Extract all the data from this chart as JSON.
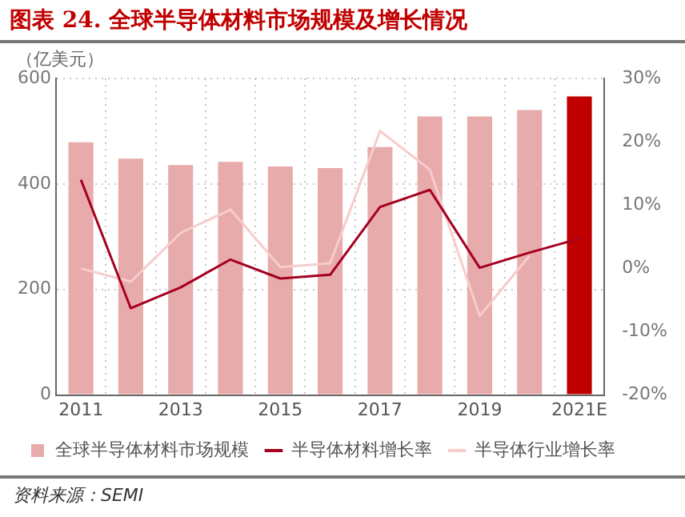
{
  "chart_data": {
    "type": "bar",
    "title": "图表 24. 全球半导体材料市场规模及增长情况",
    "ylabel": "（亿美元）",
    "categories": [
      "2011",
      null,
      "2013",
      null,
      "2015",
      null,
      "2017",
      null,
      "2019",
      null,
      "2021E"
    ],
    "series": [
      {
        "name": "全球半导体材料市场规模",
        "colors": [
          "#e8abab",
          "#e8abab",
          "#e8abab",
          "#e8abab",
          "#e8abab",
          "#e8abab",
          "#e8abab",
          "#e8abab",
          "#e8abab",
          "#e8abab",
          "#c00000"
        ],
        "values": [
          479,
          448,
          436,
          442,
          433,
          430,
          470,
          528,
          528,
          540,
          566
        ]
      },
      {
        "name": "半导体材料增长率",
        "type": "line",
        "axis": "y2",
        "color": "#a50021",
        "values": [
          14.0,
          -6.3,
          -3.0,
          1.4,
          -1.6,
          -1.0,
          9.7,
          12.4,
          0.1,
          2.5,
          4.7
        ]
      },
      {
        "name": "半导体行业增长率",
        "type": "line",
        "axis": "y2",
        "color": "#f7cccc",
        "values": [
          0,
          -2.1,
          5.6,
          9.3,
          0.2,
          0.8,
          21.7,
          15.6,
          -7.5,
          2.0,
          null
        ]
      }
    ],
    "ylim": [
      0,
      600
    ],
    "yticks": [
      0,
      200,
      400,
      600
    ],
    "y2lim": [
      -20,
      30
    ],
    "y2ticks": [
      {
        "value": -20,
        "label": "-20%"
      },
      {
        "value": -10,
        "label": "-10%"
      },
      {
        "value": 0,
        "label": "0%"
      },
      {
        "value": 10,
        "label": "10%"
      },
      {
        "value": 20,
        "label": "20%"
      },
      {
        "value": 30,
        "label": "30%"
      }
    ],
    "grid": true,
    "legend": "bottom",
    "marker": "none",
    "line_style": "solid",
    "annotations": [
      "资料来源：SEMI"
    ]
  }
}
